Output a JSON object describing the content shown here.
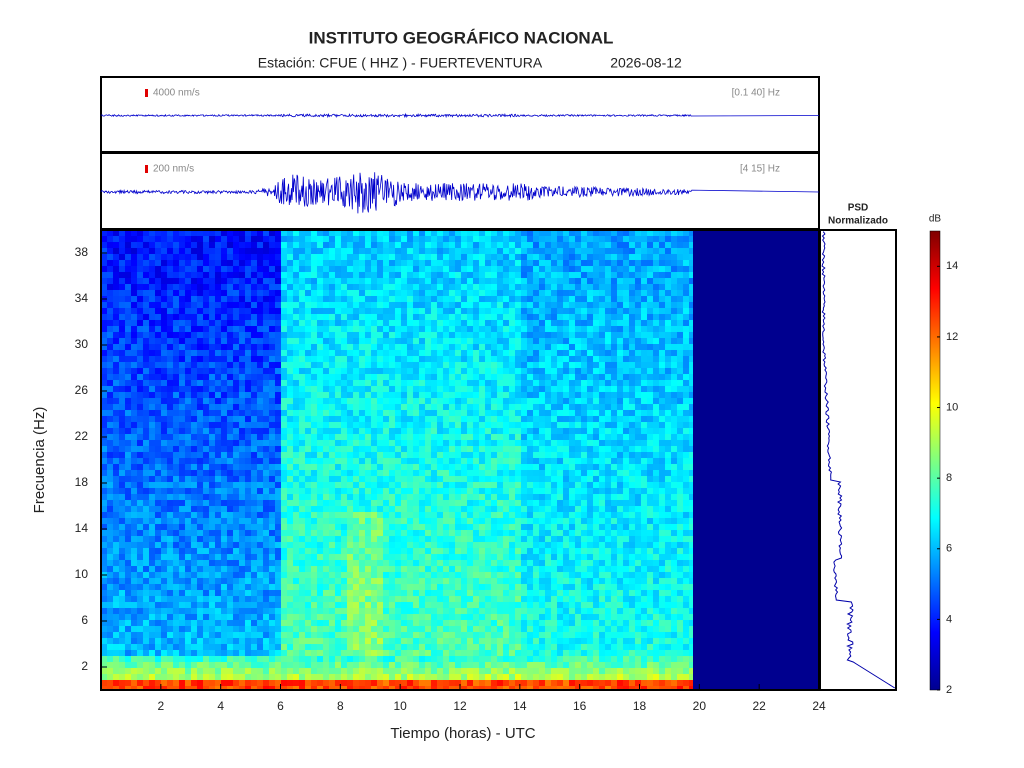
{
  "chart_data": {
    "type": "heatmap",
    "title": "INSTITUTO GEOGRÁFICO NACIONAL",
    "subtitle": "Estación:  CFUE ( HHZ ) - FUERTEVENTURA",
    "date": "2026-08-12",
    "xlabel": "Tiempo (horas) - UTC",
    "ylabel": "Frecuencia  (Hz)",
    "xlim": [
      0,
      24
    ],
    "xticks": [
      2,
      4,
      6,
      8,
      10,
      12,
      14,
      16,
      18,
      20,
      22,
      24
    ],
    "ylim": [
      0,
      40
    ],
    "yticks": [
      2,
      6,
      10,
      14,
      18,
      22,
      26,
      30,
      34,
      38
    ],
    "traces": [
      {
        "scale": "4000 nm/s",
        "band": "[0.1 40] Hz"
      },
      {
        "scale": "200 nm/s",
        "band": "[4 15] Hz"
      }
    ],
    "psd_title": [
      "PSD",
      "Normalizado"
    ],
    "colorbar": {
      "label": "dB",
      "lim": [
        2,
        15
      ],
      "ticks": [
        2,
        4,
        6,
        8,
        10,
        12,
        14
      ]
    }
  }
}
